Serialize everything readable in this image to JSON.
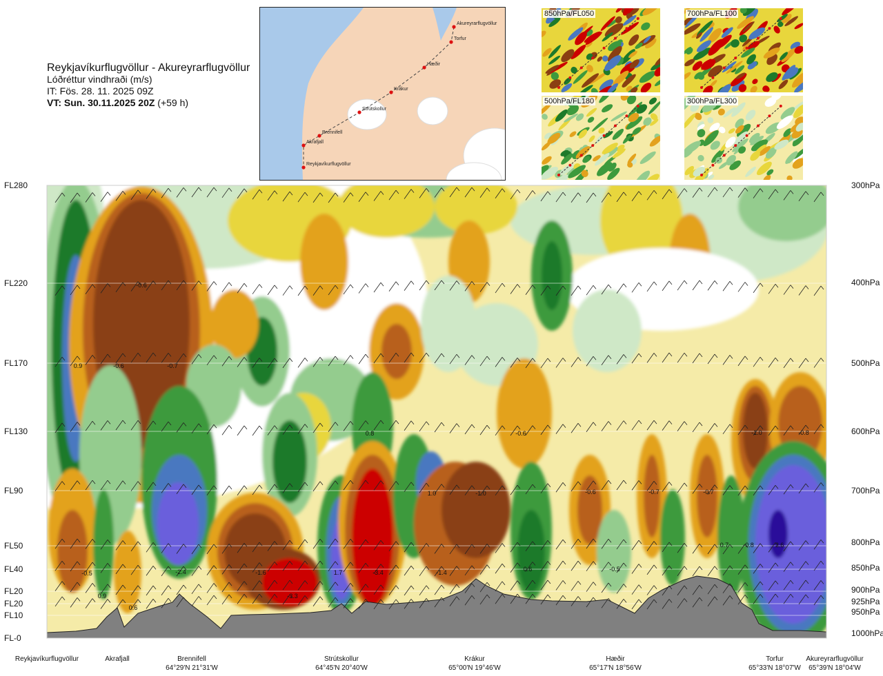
{
  "title": {
    "route": "Reykjavíkurflugvöllur - Akureyrarflugvöllur",
    "variable": "Lóðréttur vindhraði (m/s)",
    "it": "IT: Fös. 28. 11. 2025 09Z",
    "vt_bold": "VT: Sun. 30.11.2025 20Z",
    "vt_rest": " (+59 h)"
  },
  "map": {
    "labels": [
      "Akureyrarflugvöllur",
      "Torfur",
      "Hæðir",
      "Krákur",
      "Strútskollur",
      "Brennifell",
      "Akrafjall",
      "Reykjavíkurflugvöllur"
    ],
    "colors": {
      "sea": "#a9c9ea",
      "land": "#f6d5b8",
      "ice": "#ffffff",
      "route": "#444444",
      "point": "#dd1111"
    }
  },
  "thumbnails": [
    {
      "label": "850hPa/FL050"
    },
    {
      "label": "700hPa/FL100"
    },
    {
      "label": "500hPa/FL180"
    },
    {
      "label": "300hPa/FL300"
    }
  ],
  "chart_data": {
    "type": "heatmap",
    "title": "Lóðréttur vindhraði (m/s)",
    "flight_levels": [
      "FL280",
      "FL220",
      "FL170",
      "FL130",
      "FL90",
      "FL50",
      "FL40",
      "FL20",
      "FL20",
      "FL10",
      "FL-0"
    ],
    "pressure_levels": [
      "300hPa",
      "400hPa",
      "500hPa",
      "600hPa",
      "700hPa",
      "800hPa",
      "850hPa",
      "900hPa",
      "925hPa",
      "950hPa",
      "1000hPa"
    ],
    "sites": [
      {
        "name": "Reykjavíkurflugvöllur",
        "coord": ""
      },
      {
        "name": "Akrafjall",
        "coord": ""
      },
      {
        "name": "Brennifell",
        "coord": "64°29'N 21°31'W"
      },
      {
        "name": "Strútskollur",
        "coord": "64°45'N 20°40'W"
      },
      {
        "name": "Krákur",
        "coord": "65°00'N 19°46'W"
      },
      {
        "name": "Hæðir",
        "coord": "65°17'N 18°56'W"
      },
      {
        "name": "Torfur",
        "coord": "65°33'N 18°07'W"
      },
      {
        "name": "Akureyrarflugvöllur",
        "coord": "65°39'N 18°04'W"
      }
    ],
    "contour_labels": [
      "-0.6",
      "0.9",
      "-0.6",
      "-0.7",
      "0.8",
      "-0.6",
      "-1.0",
      "-0.8",
      "1.0",
      "-1.0",
      "-0.6",
      "-0.7",
      "-0.7",
      "0.7",
      "-0.8",
      "2.6",
      "-0.5",
      "-2.4",
      "-1.6",
      "1.7",
      "-3.4",
      "-1.4",
      "0.6",
      "-0.5",
      "0.9",
      "0.6",
      "-3.3"
    ],
    "colors": {
      "strong_down": "#cc0000",
      "down_2": "#8a3f12",
      "down_1": "#b8601a",
      "weak_down_3": "#e3a21d",
      "weak_down_2": "#e8d63c",
      "weak_down_1": "#f5eba8",
      "near_zero": "#ffffff",
      "weak_up_1": "#cfe8c7",
      "weak_up_2": "#94cc8e",
      "weak_up_3": "#3d9a3d",
      "up_2": "#1d7a2a",
      "up_3": "#4a78c0",
      "strong_up": "#6a5fdc",
      "extreme_up": "#2c0f9a",
      "terrain": "#808080"
    }
  }
}
